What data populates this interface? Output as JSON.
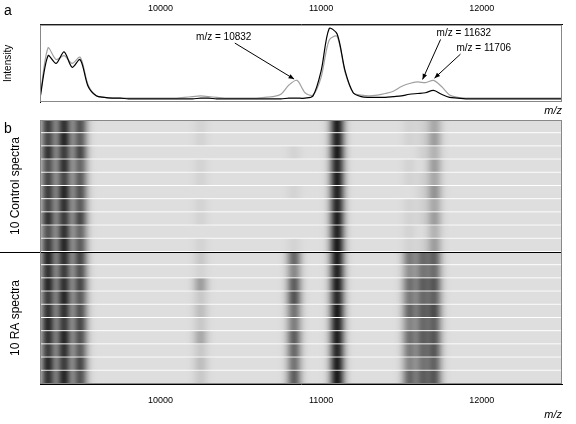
{
  "chart_data": [
    {
      "type": "line",
      "title": "a",
      "xlabel": "m/z",
      "ylabel": "Intensity",
      "x": [
        9250,
        9300,
        9350,
        9400,
        9450,
        9500,
        9550,
        9600,
        9650,
        9700,
        9750,
        9800,
        9850,
        9900,
        9950,
        10000,
        10050,
        10100,
        10150,
        10200,
        10250,
        10300,
        10350,
        10400,
        10450,
        10500,
        10550,
        10600,
        10650,
        10700,
        10750,
        10800,
        10850,
        10900,
        10950,
        11000,
        11050,
        11100,
        11150,
        11200,
        11250,
        11300,
        11350,
        11400,
        11450,
        11500,
        11550,
        11600,
        11650,
        11700,
        11750,
        11800,
        11850,
        11900,
        11950,
        12000,
        12050,
        12100,
        12150,
        12200,
        12250,
        12300,
        12350,
        12400,
        12450,
        12500
      ],
      "series": [
        {
          "color": "#000000",
          "values": [
            5,
            60,
            50,
            65,
            45,
            55,
            20,
            8,
            6,
            5,
            5,
            4,
            4,
            4,
            4,
            4,
            4,
            4,
            4,
            4,
            5,
            5,
            4,
            4,
            4,
            4,
            4,
            4,
            4,
            4,
            4,
            5,
            5,
            5,
            8,
            40,
            95,
            88,
            40,
            12,
            7,
            6,
            6,
            6,
            7,
            8,
            10,
            11,
            12,
            15,
            10,
            6,
            5,
            4,
            4,
            4,
            4,
            4,
            4,
            4,
            4,
            4,
            4,
            4,
            4,
            4
          ]
        },
        {
          "color": "#a0a0a0",
          "values": [
            6,
            70,
            55,
            60,
            50,
            58,
            22,
            8,
            6,
            5,
            5,
            5,
            5,
            5,
            5,
            5,
            5,
            5,
            6,
            7,
            8,
            7,
            6,
            5,
            5,
            5,
            5,
            5,
            6,
            7,
            10,
            22,
            28,
            12,
            9,
            32,
            80,
            85,
            38,
            12,
            9,
            8,
            9,
            11,
            14,
            20,
            24,
            26,
            25,
            28,
            20,
            9,
            6,
            5,
            5,
            5,
            5,
            5,
            5,
            5,
            5,
            5,
            5,
            5,
            5,
            5
          ]
        }
      ],
      "xlim": [
        9250,
        12500
      ],
      "xticks": [
        10000,
        11000,
        12000
      ],
      "ylim": [
        0,
        100
      ],
      "tick_labels": "x",
      "grid": false,
      "annotations": [
        {
          "text": "m/z = 10832",
          "x": 10832
        },
        {
          "text": "m/z = 11632",
          "x": 11632
        },
        {
          "text": "m/z = 11706",
          "x": 11706
        }
      ]
    },
    {
      "type": "gel",
      "title": "b",
      "xlabel": "m/z",
      "xlim": [
        9250,
        12500
      ],
      "xticks": [
        10000,
        11000,
        12000
      ],
      "grid": false,
      "band_mz": [
        9300,
        9400,
        9500,
        10250,
        10832,
        11100,
        11550,
        11632,
        11706
      ],
      "groups": [
        {
          "label": "10 Control spectra",
          "rows": [
            [
              75,
              80,
              65,
              5,
              0,
              90,
              5,
              5,
              25
            ],
            [
              70,
              85,
              60,
              5,
              0,
              88,
              5,
              5,
              30
            ],
            [
              80,
              75,
              70,
              0,
              5,
              92,
              0,
              5,
              20
            ],
            [
              65,
              80,
              55,
              5,
              0,
              85,
              5,
              0,
              30
            ],
            [
              70,
              70,
              60,
              5,
              0,
              90,
              5,
              5,
              25
            ],
            [
              75,
              85,
              65,
              0,
              5,
              88,
              0,
              5,
              35
            ],
            [
              70,
              80,
              60,
              5,
              0,
              86,
              5,
              5,
              25
            ],
            [
              80,
              75,
              70,
              5,
              0,
              90,
              5,
              5,
              30
            ],
            [
              65,
              80,
              55,
              0,
              0,
              88,
              5,
              0,
              20
            ],
            [
              75,
              85,
              60,
              5,
              5,
              92,
              5,
              5,
              30
            ]
          ]
        },
        {
          "label": "10 RA spectra",
          "rows": [
            [
              85,
              80,
              70,
              10,
              55,
              90,
              45,
              50,
              55
            ],
            [
              80,
              75,
              65,
              5,
              40,
              88,
              35,
              45,
              50
            ],
            [
              85,
              80,
              70,
              30,
              60,
              90,
              50,
              55,
              60
            ],
            [
              75,
              85,
              60,
              10,
              65,
              85,
              45,
              50,
              55
            ],
            [
              80,
              80,
              65,
              15,
              50,
              92,
              55,
              55,
              65
            ],
            [
              85,
              75,
              70,
              10,
              45,
              88,
              40,
              50,
              55
            ],
            [
              80,
              85,
              65,
              25,
              60,
              90,
              50,
              55,
              60
            ],
            [
              75,
              80,
              60,
              10,
              55,
              86,
              45,
              50,
              60
            ],
            [
              85,
              75,
              70,
              15,
              50,
              90,
              40,
              45,
              55
            ],
            [
              80,
              85,
              65,
              10,
              60,
              92,
              55,
              55,
              60
            ]
          ]
        }
      ]
    }
  ]
}
